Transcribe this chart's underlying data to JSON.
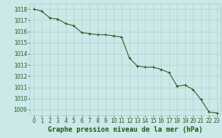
{
  "x": [
    0,
    1,
    2,
    3,
    4,
    5,
    6,
    7,
    8,
    9,
    10,
    11,
    12,
    13,
    14,
    15,
    16,
    17,
    18,
    19,
    20,
    21,
    22,
    23
  ],
  "y": [
    1018.0,
    1017.8,
    1017.2,
    1017.1,
    1016.7,
    1016.5,
    1015.9,
    1015.8,
    1015.7,
    1015.7,
    1015.6,
    1015.5,
    1013.6,
    1012.9,
    1012.8,
    1012.8,
    1012.6,
    1012.3,
    1011.1,
    1011.2,
    1010.8,
    1009.9,
    1008.8,
    1008.7
  ],
  "xlabel": "Graphe pression niveau de la mer (hPa)",
  "xlim": [
    -0.5,
    23.5
  ],
  "ylim": [
    1008.5,
    1018.5
  ],
  "yticks": [
    1009,
    1010,
    1011,
    1012,
    1013,
    1014,
    1015,
    1016,
    1017,
    1018
  ],
  "xticks": [
    0,
    1,
    2,
    3,
    4,
    5,
    6,
    7,
    8,
    9,
    10,
    11,
    12,
    13,
    14,
    15,
    16,
    17,
    18,
    19,
    20,
    21,
    22,
    23
  ],
  "line_color": "#1a5c1a",
  "marker_color": "#1a5c1a",
  "bg_color": "#cce8e8",
  "grid_color": "#a0cccc",
  "tick_color": "#1a5c1a",
  "label_color": "#1a5c1a",
  "tick_fontsize": 5.5,
  "label_fontsize": 7.0
}
